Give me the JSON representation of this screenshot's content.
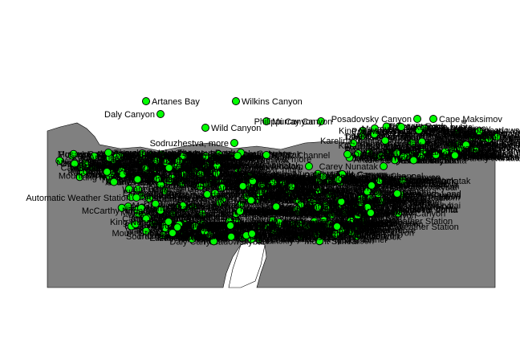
{
  "map": {
    "colors": {
      "land": "#808080",
      "point": "#00ff00",
      "label": "#000000",
      "background": "#ffffff"
    },
    "places": [
      {
        "name": "Artanes Bay"
      },
      {
        "name": "Wilkins Canyon"
      },
      {
        "name": "Daly Canyon"
      },
      {
        "name": "Wild Canyon"
      },
      {
        "name": "Murray Canyon"
      },
      {
        "name": "Philippi Canyon"
      },
      {
        "name": "Posadovsky Canyon"
      },
      {
        "name": "Cape Maksimov"
      },
      {
        "name": "Nikolaeva, buhta"
      },
      {
        "name": "Posadowskybai"
      },
      {
        "name": "Karelina, buhta"
      },
      {
        "name": "Sodruzhestva, more"
      },
      {
        "name": "Thorgaut Rock"
      },
      {
        "name": "Fram Bank"
      },
      {
        "name": "Prydz Channel"
      },
      {
        "name": "Dublitskiy"
      },
      {
        "name": "Tajmyrskij, ledolom"
      },
      {
        "name": "Carey Nunatak"
      },
      {
        "name": "Thorshavn Islands"
      },
      {
        "name": "Elizabeth Land"
      },
      {
        "name": "Automatic Weather Station"
      },
      {
        "name": "Vent Fell"
      },
      {
        "name": "McCarthy Nunatak"
      },
      {
        "name": "Mount Stinear"
      },
      {
        "name": "King Nunatak"
      },
      {
        "name": "Gorbunov, ostrova"
      },
      {
        "name": "Mikkelsen"
      }
    ]
  }
}
